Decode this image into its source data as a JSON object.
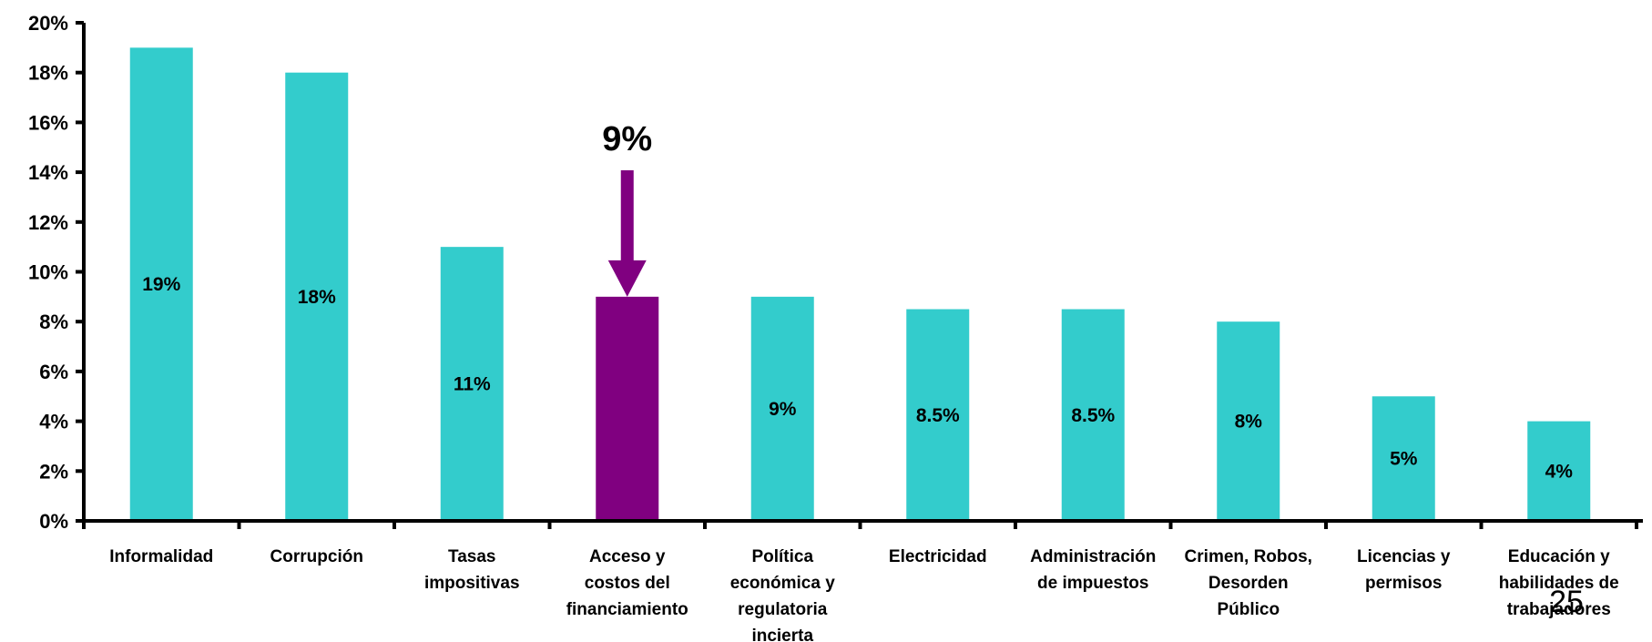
{
  "chart_data": {
    "type": "bar",
    "categories": [
      [
        "Informalidad"
      ],
      [
        "Corrupción"
      ],
      [
        "Tasas",
        "impositivas"
      ],
      [
        "Acceso y",
        "costos del",
        "financiamiento"
      ],
      [
        "Política",
        "económica y",
        "regulatoria",
        "incierta"
      ],
      [
        "Electricidad"
      ],
      [
        "Administración",
        "de impuestos"
      ],
      [
        "Crimen, Robos,",
        "Desorden",
        "Público"
      ],
      [
        "Licencias y",
        "permisos"
      ],
      [
        "Educación y",
        "habilidades de",
        "trabajadores"
      ]
    ],
    "values": [
      19,
      18,
      11,
      9,
      9,
      8.5,
      8.5,
      8,
      5,
      4
    ],
    "data_labels": [
      "19%",
      "18%",
      "11%",
      "",
      "9%",
      "8.5%",
      "8.5%",
      "8%",
      "5%",
      "4%"
    ],
    "highlight_index": 3,
    "colors": {
      "bar": "#33CCCC",
      "highlight": "#800080",
      "axis": "#000000"
    },
    "ylim": [
      0,
      20
    ],
    "yticks": [
      "0%",
      "2%",
      "4%",
      "6%",
      "8%",
      "10%",
      "12%",
      "14%",
      "16%",
      "18%",
      "20%"
    ],
    "ytick_values": [
      0,
      2,
      4,
      6,
      8,
      10,
      12,
      14,
      16,
      18,
      20
    ],
    "grid": false,
    "legend": "none",
    "callout": {
      "label": "9%",
      "target_index": 3,
      "direction": "down-arrow"
    },
    "title": "",
    "xlabel": "",
    "ylabel": ""
  },
  "page_number": "25"
}
